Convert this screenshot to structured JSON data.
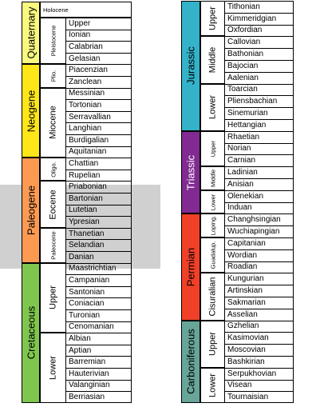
{
  "colors": {
    "quaternary": "#f9f97f",
    "neogene": "#ffe619",
    "paleogene": "#fd9a52",
    "cretaceous": "#7fc64e",
    "jurassic": "#34b2c9",
    "triassic": "#812b92",
    "permian": "#f04028",
    "carboniferous": "#67a599",
    "highlight": "#a9a9a9"
  },
  "columns": [
    {
      "periods": [
        {
          "label": "Quaternary",
          "color_key": "quaternary",
          "epochs": [
            {
              "label": "Holocene",
              "horizontal": true,
              "stages": []
            },
            {
              "label": "Pleistocene",
              "small": true,
              "stages": [
                "Upper",
                "Ionian",
                "Calabrian",
                "Gelasian"
              ]
            }
          ]
        },
        {
          "label": "Neogene",
          "color_key": "neogene",
          "epochs": [
            {
              "label": "Plio.",
              "small": true,
              "stages": [
                "Piacenzian",
                "Zanclean"
              ]
            },
            {
              "label": "Miocene",
              "stages": [
                "Messinian",
                "Tortonian",
                "Serravallian",
                "Langhian",
                "Burdigalian",
                "Aquitanian"
              ]
            }
          ]
        },
        {
          "label": "Paleogene",
          "color_key": "paleogene",
          "epochs": [
            {
              "label": "Oligo.",
              "small": true,
              "stages": [
                "Chattian",
                "Rupelian"
              ]
            },
            {
              "label": "Eocene",
              "stages": [
                "Priabonian",
                "Bartonian",
                "Lutetian",
                "Ypresian"
              ]
            },
            {
              "label": "Paleocene",
              "small": true,
              "stages": [
                "Thanetian",
                "Selandian",
                "Danian"
              ]
            }
          ]
        },
        {
          "label": "Cretaceous",
          "color_key": "cretaceous",
          "epochs": [
            {
              "label": "Upper",
              "stages": [
                "Maastrichtian",
                "Campanian",
                "Santonian",
                "Coniacian",
                "Turonian",
                "Cenomanian"
              ]
            },
            {
              "label": "Lower",
              "stages": [
                "Albian",
                "Aptian",
                "Barremian",
                "Hauterivian",
                "Valanginian",
                "Berriasian"
              ]
            }
          ]
        }
      ]
    },
    {
      "periods": [
        {
          "label": "Jurassic",
          "color_key": "jurassic",
          "epochs": [
            {
              "label": "Upper",
              "stages": [
                "Tithonian",
                "Kimmeridgian",
                "Oxfordian"
              ]
            },
            {
              "label": "Middle",
              "stages": [
                "Callovian",
                "Bathonian",
                "Bajocian",
                "Aalenian"
              ]
            },
            {
              "label": "Lower",
              "stages": [
                "Toarcian",
                "Pliensbachian",
                "Sinemurian",
                "Hettangian"
              ]
            }
          ]
        },
        {
          "label": "Triassic",
          "color_key": "triassic",
          "light_text": true,
          "epochs": [
            {
              "label": "Upper",
              "small": true,
              "stages": [
                "Rhaetian",
                "Norian",
                "Carnian"
              ]
            },
            {
              "label": "Middle",
              "small": true,
              "stages": [
                "Ladinian",
                "Anisian"
              ]
            },
            {
              "label": "Lower",
              "small": true,
              "stages": [
                "Olenekian",
                "Induan"
              ]
            }
          ]
        },
        {
          "label": "Permian",
          "color_key": "permian",
          "epochs": [
            {
              "label": "Loping.",
              "small": true,
              "stages": [
                "Changhsingian",
                "Wuchiapingian"
              ]
            },
            {
              "label": "Guadalup.",
              "small": true,
              "stages": [
                "Capitanian",
                "Wordian",
                "Roadian"
              ]
            },
            {
              "label": "Cisuralian",
              "stages": [
                "Kungurian",
                "Artinskian",
                "Sakmarian",
                "Asselian"
              ]
            }
          ]
        },
        {
          "label": "Carboniferous",
          "color_key": "carboniferous",
          "epochs": [
            {
              "label": "Upper",
              "stages": [
                "Gzhelian",
                "Kasimovian",
                "Moscovian",
                "Bashkirian"
              ]
            },
            {
              "label": "Lower",
              "stages": [
                "Serpukhovian",
                "Visean",
                "Tournaisian"
              ]
            }
          ]
        }
      ]
    }
  ]
}
